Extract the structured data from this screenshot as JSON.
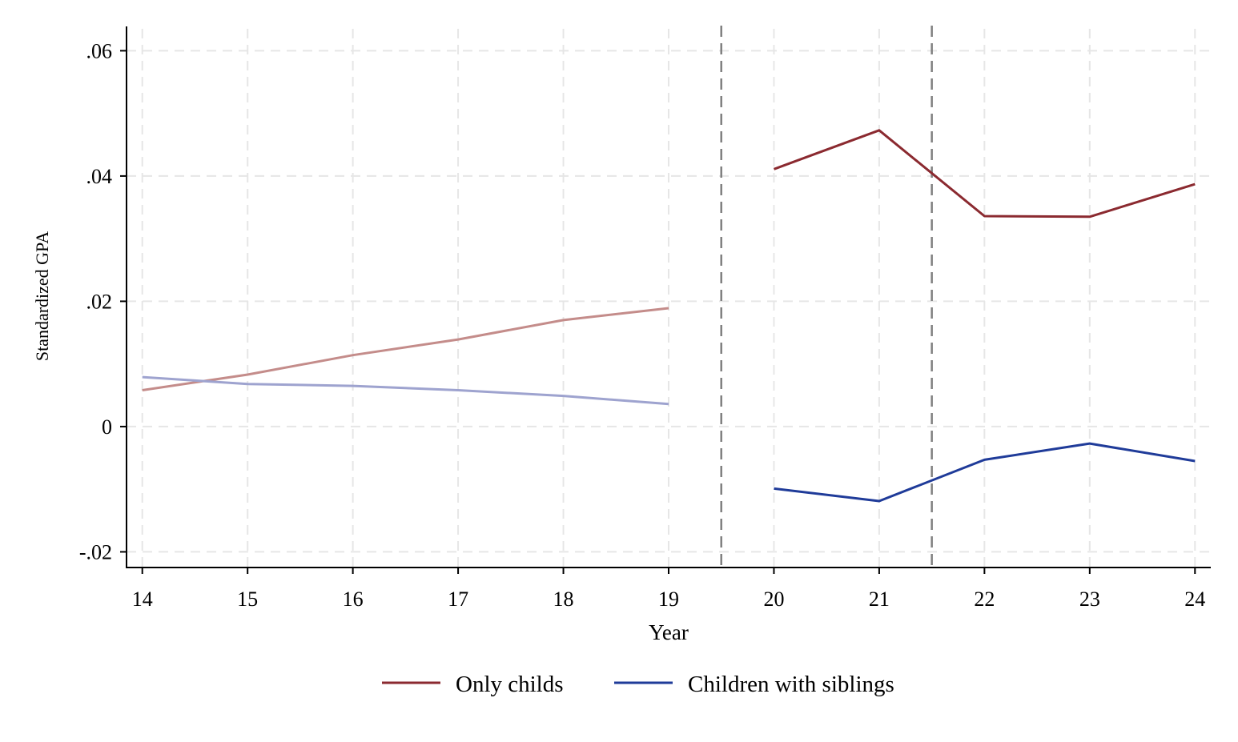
{
  "chart_data": {
    "type": "line",
    "xlabel": "Year",
    "ylabel": "Standardized GPA",
    "xlim": [
      13.85,
      24.15
    ],
    "ylim": [
      -0.0225,
      0.0635
    ],
    "x_ticks": [
      14,
      15,
      16,
      17,
      18,
      19,
      20,
      21,
      22,
      23,
      24
    ],
    "x_tick_labels": [
      "14",
      "15",
      "16",
      "17",
      "18",
      "19",
      "20",
      "21",
      "22",
      "23",
      "24"
    ],
    "y_ticks": [
      -0.02,
      0,
      0.02,
      0.04,
      0.06
    ],
    "y_tick_labels": [
      "-.02",
      "0",
      ".02",
      ".04",
      ".06"
    ],
    "grid": true,
    "vertical_reference_lines": [
      19.5,
      21.5
    ],
    "legend_position": "bottom",
    "series": [
      {
        "name": "Only childs",
        "color": "#8b2a30",
        "segments": [
          {
            "color": "#c48c8a",
            "x": [
              14,
              15,
              16,
              17,
              18,
              19
            ],
            "y": [
              0.0058,
              0.0083,
              0.0114,
              0.0139,
              0.017,
              0.0189
            ]
          },
          {
            "color": "#8b2a30",
            "x": [
              20,
              21,
              22,
              23,
              24
            ],
            "y": [
              0.0411,
              0.0473,
              0.0336,
              0.0335,
              0.0387
            ]
          }
        ]
      },
      {
        "name": "Children with siblings",
        "color": "#1f3b99",
        "segments": [
          {
            "color": "#9ea3cf",
            "x": [
              14,
              15,
              16,
              17,
              18,
              19
            ],
            "y": [
              0.0079,
              0.0068,
              0.0065,
              0.0058,
              0.0049,
              0.0036
            ]
          },
          {
            "color": "#1f3b99",
            "x": [
              20,
              21,
              22,
              23,
              24
            ],
            "y": [
              -0.0099,
              -0.0119,
              -0.0053,
              -0.0027,
              -0.0055
            ]
          }
        ]
      }
    ]
  }
}
